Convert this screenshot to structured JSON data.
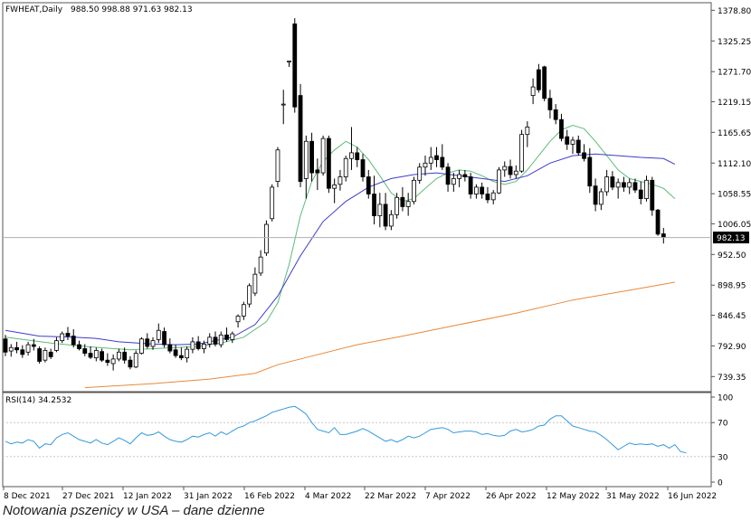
{
  "chart_data": {
    "type": "candlestick",
    "instrument_label": "FWHEAT,Daily",
    "ohlc_label": "988.50 998.88 971.63 982.13",
    "price_axis": {
      "ticks": [
        "1378.80",
        "1325.25",
        "1271.70",
        "1219.15",
        "1165.65",
        "1112.10",
        "1058.55",
        "1006.05",
        "952.50",
        "898.95",
        "846.45",
        "792.90",
        "739.35"
      ],
      "ylim": [
        713,
        1392
      ]
    },
    "current_price_label": "982.13",
    "x_labels": [
      "8 Dec 2021",
      "27 Dec 2021",
      "12 Jan 2022",
      "31 Jan 2022",
      "16 Feb 2022",
      "4 Mar 2022",
      "22 Mar 2022",
      "7 Apr 2022",
      "26 Apr 2022",
      "12 May 2022",
      "31 May 2022",
      "16 Jun 2022"
    ],
    "candles": [
      {
        "o": 805,
        "h": 812,
        "l": 775,
        "c": 782
      },
      {
        "o": 784,
        "h": 796,
        "l": 774,
        "c": 790
      },
      {
        "o": 790,
        "h": 800,
        "l": 780,
        "c": 786
      },
      {
        "o": 786,
        "h": 794,
        "l": 772,
        "c": 778
      },
      {
        "o": 782,
        "h": 800,
        "l": 776,
        "c": 795
      },
      {
        "o": 795,
        "h": 805,
        "l": 785,
        "c": 792
      },
      {
        "o": 788,
        "h": 792,
        "l": 762,
        "c": 766
      },
      {
        "o": 768,
        "h": 790,
        "l": 764,
        "c": 785
      },
      {
        "o": 782,
        "h": 788,
        "l": 770,
        "c": 774
      },
      {
        "o": 785,
        "h": 808,
        "l": 782,
        "c": 802
      },
      {
        "o": 802,
        "h": 818,
        "l": 798,
        "c": 814
      },
      {
        "o": 815,
        "h": 826,
        "l": 803,
        "c": 810
      },
      {
        "o": 810,
        "h": 822,
        "l": 790,
        "c": 795
      },
      {
        "o": 795,
        "h": 802,
        "l": 785,
        "c": 788
      },
      {
        "o": 788,
        "h": 796,
        "l": 775,
        "c": 780
      },
      {
        "o": 780,
        "h": 792,
        "l": 770,
        "c": 773
      },
      {
        "o": 772,
        "h": 790,
        "l": 766,
        "c": 785
      },
      {
        "o": 783,
        "h": 788,
        "l": 765,
        "c": 768
      },
      {
        "o": 768,
        "h": 780,
        "l": 758,
        "c": 764
      },
      {
        "o": 762,
        "h": 778,
        "l": 750,
        "c": 770
      },
      {
        "o": 770,
        "h": 788,
        "l": 766,
        "c": 782
      },
      {
        "o": 782,
        "h": 790,
        "l": 762,
        "c": 768
      },
      {
        "o": 768,
        "h": 775,
        "l": 752,
        "c": 756
      },
      {
        "o": 756,
        "h": 785,
        "l": 754,
        "c": 780
      },
      {
        "o": 780,
        "h": 808,
        "l": 778,
        "c": 805
      },
      {
        "o": 805,
        "h": 815,
        "l": 788,
        "c": 792
      },
      {
        "o": 792,
        "h": 808,
        "l": 786,
        "c": 802
      },
      {
        "o": 804,
        "h": 832,
        "l": 798,
        "c": 820
      },
      {
        "o": 818,
        "h": 825,
        "l": 790,
        "c": 795
      },
      {
        "o": 795,
        "h": 806,
        "l": 780,
        "c": 784
      },
      {
        "o": 786,
        "h": 795,
        "l": 772,
        "c": 776
      },
      {
        "o": 776,
        "h": 790,
        "l": 768,
        "c": 772
      },
      {
        "o": 772,
        "h": 792,
        "l": 764,
        "c": 787
      },
      {
        "o": 787,
        "h": 808,
        "l": 780,
        "c": 800
      },
      {
        "o": 800,
        "h": 810,
        "l": 785,
        "c": 788
      },
      {
        "o": 788,
        "h": 802,
        "l": 780,
        "c": 796
      },
      {
        "o": 796,
        "h": 815,
        "l": 790,
        "c": 808
      },
      {
        "o": 808,
        "h": 818,
        "l": 792,
        "c": 796
      },
      {
        "o": 795,
        "h": 818,
        "l": 790,
        "c": 812
      },
      {
        "o": 812,
        "h": 825,
        "l": 800,
        "c": 804
      },
      {
        "o": 804,
        "h": 818,
        "l": 798,
        "c": 814
      },
      {
        "o": 835,
        "h": 848,
        "l": 825,
        "c": 845
      },
      {
        "o": 845,
        "h": 870,
        "l": 838,
        "c": 865
      },
      {
        "o": 866,
        "h": 902,
        "l": 860,
        "c": 898
      },
      {
        "o": 885,
        "h": 930,
        "l": 880,
        "c": 918
      },
      {
        "o": 920,
        "h": 960,
        "l": 915,
        "c": 948
      },
      {
        "o": 955,
        "h": 1012,
        "l": 950,
        "c": 1005
      },
      {
        "o": 1015,
        "h": 1075,
        "l": 1010,
        "c": 1070
      },
      {
        "o": 1080,
        "h": 1140,
        "l": 1070,
        "c": 1135
      },
      {
        "o": 1215,
        "h": 1240,
        "l": 1180,
        "c": 1215
      },
      {
        "o": 1290,
        "h": 1290,
        "l": 1280,
        "c": 1290
      },
      {
        "o": 1355,
        "h": 1365,
        "l": 1200,
        "c": 1210
      },
      {
        "o": 1230,
        "h": 1250,
        "l": 1070,
        "c": 1080
      },
      {
        "o": 1085,
        "h": 1160,
        "l": 1050,
        "c": 1150
      },
      {
        "o": 1150,
        "h": 1165,
        "l": 1080,
        "c": 1095
      },
      {
        "o": 1100,
        "h": 1120,
        "l": 1065,
        "c": 1095
      },
      {
        "o": 1095,
        "h": 1160,
        "l": 1090,
        "c": 1155
      },
      {
        "o": 1155,
        "h": 1160,
        "l": 1060,
        "c": 1068
      },
      {
        "o": 1068,
        "h": 1085,
        "l": 1042,
        "c": 1074
      },
      {
        "o": 1075,
        "h": 1100,
        "l": 1064,
        "c": 1088
      },
      {
        "o": 1088,
        "h": 1125,
        "l": 1080,
        "c": 1120
      },
      {
        "o": 1120,
        "h": 1175,
        "l": 1100,
        "c": 1130
      },
      {
        "o": 1130,
        "h": 1140,
        "l": 1105,
        "c": 1118
      },
      {
        "o": 1118,
        "h": 1128,
        "l": 1080,
        "c": 1088
      },
      {
        "o": 1088,
        "h": 1100,
        "l": 1050,
        "c": 1058
      },
      {
        "o": 1058,
        "h": 1090,
        "l": 1005,
        "c": 1020
      },
      {
        "o": 1020,
        "h": 1060,
        "l": 1000,
        "c": 1040
      },
      {
        "o": 1040,
        "h": 1060,
        "l": 995,
        "c": 1002
      },
      {
        "o": 1002,
        "h": 1030,
        "l": 995,
        "c": 1022
      },
      {
        "o": 1022,
        "h": 1060,
        "l": 1015,
        "c": 1052
      },
      {
        "o": 1052,
        "h": 1070,
        "l": 1028,
        "c": 1036
      },
      {
        "o": 1036,
        "h": 1060,
        "l": 1020,
        "c": 1045
      },
      {
        "o": 1045,
        "h": 1088,
        "l": 1040,
        "c": 1082
      },
      {
        "o": 1082,
        "h": 1112,
        "l": 1076,
        "c": 1105
      },
      {
        "o": 1105,
        "h": 1125,
        "l": 1090,
        "c": 1112
      },
      {
        "o": 1112,
        "h": 1140,
        "l": 1100,
        "c": 1122
      },
      {
        "o": 1125,
        "h": 1140,
        "l": 1105,
        "c": 1118
      },
      {
        "o": 1122,
        "h": 1145,
        "l": 1100,
        "c": 1105
      },
      {
        "o": 1105,
        "h": 1112,
        "l": 1062,
        "c": 1075
      },
      {
        "o": 1075,
        "h": 1095,
        "l": 1062,
        "c": 1085
      },
      {
        "o": 1085,
        "h": 1100,
        "l": 1070,
        "c": 1092
      },
      {
        "o": 1092,
        "h": 1100,
        "l": 1080,
        "c": 1088
      },
      {
        "o": 1088,
        "h": 1095,
        "l": 1050,
        "c": 1058
      },
      {
        "o": 1058,
        "h": 1075,
        "l": 1050,
        "c": 1070
      },
      {
        "o": 1070,
        "h": 1078,
        "l": 1050,
        "c": 1058
      },
      {
        "o": 1058,
        "h": 1070,
        "l": 1042,
        "c": 1048
      },
      {
        "o": 1048,
        "h": 1065,
        "l": 1040,
        "c": 1060
      },
      {
        "o": 1060,
        "h": 1105,
        "l": 1058,
        "c": 1100
      },
      {
        "o": 1100,
        "h": 1115,
        "l": 1088,
        "c": 1106
      },
      {
        "o": 1106,
        "h": 1118,
        "l": 1085,
        "c": 1092
      },
      {
        "o": 1092,
        "h": 1108,
        "l": 1085,
        "c": 1098
      },
      {
        "o": 1098,
        "h": 1170,
        "l": 1095,
        "c": 1162
      },
      {
        "o": 1162,
        "h": 1185,
        "l": 1140,
        "c": 1175
      },
      {
        "o": 1230,
        "h": 1260,
        "l": 1215,
        "c": 1245
      },
      {
        "o": 1275,
        "h": 1285,
        "l": 1235,
        "c": 1240
      },
      {
        "o": 1280,
        "h": 1282,
        "l": 1220,
        "c": 1225
      },
      {
        "o": 1225,
        "h": 1240,
        "l": 1190,
        "c": 1205
      },
      {
        "o": 1205,
        "h": 1215,
        "l": 1180,
        "c": 1188
      },
      {
        "o": 1188,
        "h": 1198,
        "l": 1150,
        "c": 1155
      },
      {
        "o": 1158,
        "h": 1170,
        "l": 1135,
        "c": 1145
      },
      {
        "o": 1145,
        "h": 1158,
        "l": 1128,
        "c": 1152
      },
      {
        "o": 1152,
        "h": 1160,
        "l": 1125,
        "c": 1130
      },
      {
        "o": 1130,
        "h": 1145,
        "l": 1115,
        "c": 1120
      },
      {
        "o": 1122,
        "h": 1138,
        "l": 1060,
        "c": 1072
      },
      {
        "o": 1072,
        "h": 1085,
        "l": 1028,
        "c": 1040
      },
      {
        "o": 1040,
        "h": 1068,
        "l": 1030,
        "c": 1062
      },
      {
        "o": 1062,
        "h": 1100,
        "l": 1055,
        "c": 1088
      },
      {
        "o": 1088,
        "h": 1098,
        "l": 1065,
        "c": 1070
      },
      {
        "o": 1070,
        "h": 1085,
        "l": 1050,
        "c": 1078
      },
      {
        "o": 1078,
        "h": 1088,
        "l": 1062,
        "c": 1070
      },
      {
        "o": 1070,
        "h": 1085,
        "l": 1058,
        "c": 1078
      },
      {
        "o": 1078,
        "h": 1085,
        "l": 1060,
        "c": 1065
      },
      {
        "o": 1065,
        "h": 1080,
        "l": 1040,
        "c": 1050
      },
      {
        "o": 1050,
        "h": 1090,
        "l": 1045,
        "c": 1082
      },
      {
        "o": 1082,
        "h": 1088,
        "l": 1020,
        "c": 1030
      },
      {
        "o": 1030,
        "h": 1032,
        "l": 985,
        "c": 988
      },
      {
        "o": 988.5,
        "h": 998.88,
        "l": 971.63,
        "c": 982.13
      }
    ],
    "series": [
      {
        "name": "",
        "color": "#5dbb7a",
        "values": [
          [
            0,
            808
          ],
          [
            8,
            798
          ],
          [
            14,
            792
          ],
          [
            22,
            786
          ],
          [
            26,
            788
          ],
          [
            30,
            790
          ],
          [
            34,
            792
          ],
          [
            38,
            798
          ],
          [
            42,
            808
          ],
          [
            46,
            835
          ],
          [
            48,
            868
          ],
          [
            50,
            935
          ],
          [
            52,
            1020
          ],
          [
            54,
            1080
          ],
          [
            56,
            1115
          ],
          [
            58,
            1135
          ],
          [
            60,
            1150
          ],
          [
            62,
            1140
          ],
          [
            64,
            1118
          ],
          [
            66,
            1090
          ],
          [
            68,
            1060
          ],
          [
            70,
            1045
          ],
          [
            72,
            1050
          ],
          [
            74,
            1068
          ],
          [
            76,
            1085
          ],
          [
            78,
            1095
          ],
          [
            80,
            1100
          ],
          [
            82,
            1098
          ],
          [
            84,
            1090
          ],
          [
            86,
            1080
          ],
          [
            88,
            1075
          ],
          [
            90,
            1080
          ],
          [
            92,
            1100
          ],
          [
            94,
            1125
          ],
          [
            96,
            1150
          ],
          [
            98,
            1170
          ],
          [
            100,
            1178
          ],
          [
            102,
            1172
          ],
          [
            104,
            1150
          ],
          [
            106,
            1125
          ],
          [
            108,
            1100
          ],
          [
            110,
            1085
          ],
          [
            112,
            1080
          ],
          [
            114,
            1075
          ],
          [
            116,
            1068
          ],
          [
            118,
            1050
          ]
        ]
      },
      {
        "name": "",
        "color": "#3c3ccc",
        "values": [
          [
            0,
            820
          ],
          [
            6,
            810
          ],
          [
            12,
            808
          ],
          [
            16,
            806
          ],
          [
            20,
            800
          ],
          [
            26,
            796
          ],
          [
            30,
            795
          ],
          [
            34,
            796
          ],
          [
            40,
            808
          ],
          [
            44,
            830
          ],
          [
            48,
            880
          ],
          [
            52,
            950
          ],
          [
            56,
            1010
          ],
          [
            60,
            1045
          ],
          [
            64,
            1070
          ],
          [
            68,
            1085
          ],
          [
            72,
            1092
          ],
          [
            76,
            1095
          ],
          [
            80,
            1090
          ],
          [
            84,
            1085
          ],
          [
            88,
            1080
          ],
          [
            92,
            1090
          ],
          [
            96,
            1112
          ],
          [
            100,
            1125
          ],
          [
            104,
            1128
          ],
          [
            108,
            1125
          ],
          [
            112,
            1122
          ],
          [
            116,
            1120
          ],
          [
            118,
            1110
          ]
        ]
      },
      {
        "name": "",
        "color": "#e8893a",
        "values": [
          [
            14,
            720
          ],
          [
            26,
            727
          ],
          [
            36,
            735
          ],
          [
            44,
            745
          ],
          [
            48,
            760
          ],
          [
            54,
            775
          ],
          [
            62,
            795
          ],
          [
            70,
            810
          ],
          [
            80,
            830
          ],
          [
            90,
            850
          ],
          [
            100,
            873
          ],
          [
            110,
            890
          ],
          [
            118,
            904
          ]
        ]
      }
    ]
  },
  "rsi_panel": {
    "label": "RSI(14) 34.2532",
    "ticks": [
      "100",
      "70",
      "30",
      "0"
    ],
    "values": [
      48,
      45,
      47,
      46,
      50,
      48,
      40,
      45,
      44,
      52,
      56,
      58,
      54,
      50,
      48,
      46,
      50,
      46,
      44,
      48,
      52,
      49,
      45,
      52,
      58,
      55,
      56,
      59,
      54,
      50,
      48,
      47,
      50,
      54,
      53,
      56,
      58,
      54,
      59,
      56,
      60,
      64,
      66,
      70,
      72,
      75,
      78,
      82,
      84,
      86,
      88,
      89,
      85,
      80,
      70,
      62,
      60,
      58,
      64,
      56,
      56,
      58,
      60,
      63,
      60,
      56,
      52,
      48,
      50,
      47,
      50,
      54,
      52,
      54,
      58,
      62,
      63,
      64,
      62,
      58,
      59,
      60,
      60,
      59,
      56,
      57,
      55,
      54,
      55,
      60,
      62,
      59,
      60,
      62,
      66,
      67,
      74,
      78,
      78,
      72,
      66,
      64,
      62,
      60,
      59,
      55,
      50,
      44,
      38,
      42,
      46,
      44,
      45,
      44,
      45,
      42,
      44,
      40,
      44,
      36,
      34.25
    ]
  },
  "footer": {
    "caption": "Notowania pszenicy w USA – dane dzienne"
  }
}
